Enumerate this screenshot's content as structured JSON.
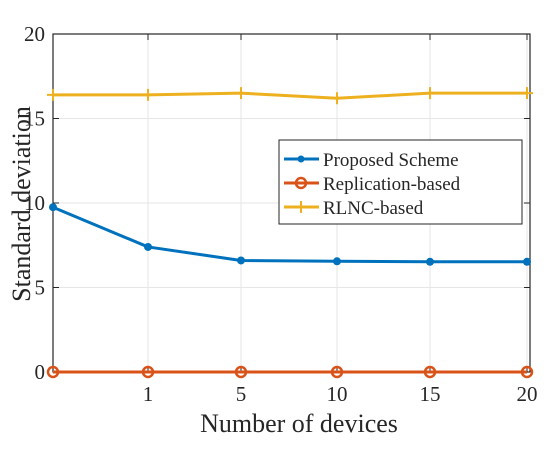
{
  "chart_data": {
    "type": "line",
    "title": "",
    "xlabel": "Number of devices",
    "ylabel": "Standard deviation",
    "x": [
      0,
      1,
      5,
      10,
      15,
      20
    ],
    "xticks": [
      1,
      5,
      10,
      15,
      20
    ],
    "xtick_labels": [
      "1",
      "5",
      "10",
      "15",
      "20"
    ],
    "yticks": [
      0,
      5,
      10,
      15,
      20
    ],
    "ytick_labels": [
      "0",
      "5",
      "10",
      "15",
      "20"
    ],
    "ylim": [
      0,
      20
    ],
    "grid": true,
    "legend_position": "right",
    "series": [
      {
        "name": "Proposed Scheme",
        "values": [
          9.75,
          7.4,
          6.6,
          6.55,
          6.52,
          6.52
        ],
        "color": "#0072BD",
        "marker": "dot"
      },
      {
        "name": "Replication-based",
        "values": [
          0,
          0,
          0,
          0,
          0,
          0
        ],
        "color": "#D95319",
        "marker": "circle"
      },
      {
        "name": "RLNC-based",
        "values": [
          16.4,
          16.4,
          16.5,
          16.2,
          16.5,
          16.5
        ],
        "color": "#EDB120",
        "marker": "plus"
      }
    ]
  }
}
